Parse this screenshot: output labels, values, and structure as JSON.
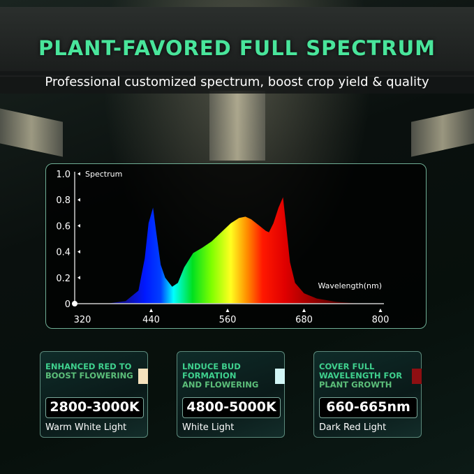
{
  "header": {
    "title": "PLANT-FAVORED FULL SPECTRUM",
    "subtitle": "Professional customized spectrum, boost crop yield & quality"
  },
  "chart_data": {
    "type": "area",
    "ylabel": "Spectrum",
    "xlabel": "Wavelength(nm)",
    "xlim": [
      320,
      800
    ],
    "ylim": [
      0,
      1.0
    ],
    "x_ticks": [
      "320",
      "440",
      "560",
      "680",
      "800"
    ],
    "y_ticks": [
      "0",
      "0.2",
      "0.4",
      "0.6",
      "0.8",
      "1.0"
    ],
    "grid": false,
    "x": [
      370,
      400,
      420,
      430,
      436,
      443,
      448,
      455,
      462,
      473,
      482,
      492,
      506,
      520,
      535,
      550,
      565,
      578,
      588,
      597,
      610,
      620,
      625,
      632,
      640,
      647,
      652,
      658,
      666,
      680,
      700,
      730,
      770
    ],
    "y": [
      0,
      0.02,
      0.1,
      0.35,
      0.62,
      0.74,
      0.55,
      0.3,
      0.2,
      0.13,
      0.16,
      0.28,
      0.39,
      0.43,
      0.48,
      0.55,
      0.62,
      0.66,
      0.67,
      0.65,
      0.6,
      0.56,
      0.55,
      0.62,
      0.74,
      0.82,
      0.6,
      0.32,
      0.16,
      0.08,
      0.04,
      0.015,
      0
    ]
  },
  "cards": [
    {
      "heading1": "ENHANCED RED TO",
      "heading2": "BOOST FLOWERING",
      "heading3": "",
      "value": "2800-3000K",
      "label": "Warm White Light",
      "swatch": "#f6e2bd"
    },
    {
      "heading1": "LNDUCE BUD",
      "heading2": "FORMATION",
      "heading3": "AND FLOWERING",
      "value": "4800-5000K",
      "label": "White Light",
      "swatch": "#d2f6f6"
    },
    {
      "heading1": "COVER FULL",
      "heading2": "WAVELENGTH FOR",
      "heading3": "PLANT GROWTH",
      "value": "660-665nm",
      "label": "Dark Red Light",
      "swatch": "#8e0f12"
    }
  ],
  "colors": {
    "accent": "#49e59b"
  }
}
